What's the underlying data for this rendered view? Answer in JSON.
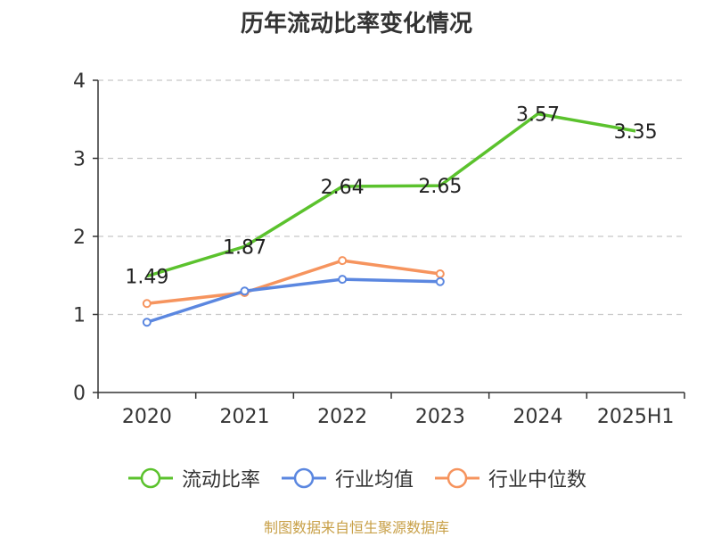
{
  "chart_data": {
    "type": "line",
    "title": "历年流动比率变化情况",
    "categories": [
      "2020",
      "2021",
      "2022",
      "2023",
      "2024",
      "2025H1"
    ],
    "ylim": [
      0,
      4
    ],
    "yticks": [
      "0",
      "1",
      "2",
      "3",
      "4"
    ],
    "grid": true,
    "legend_position": "bottom",
    "series": [
      {
        "name": "流动比率",
        "color": "#5bc22d",
        "show_labels": true,
        "values": [
          1.49,
          1.87,
          2.64,
          2.65,
          3.57,
          3.35
        ],
        "labels": [
          "1.49",
          "1.87",
          "2.64",
          "2.65",
          "3.57",
          "3.35"
        ]
      },
      {
        "name": "行业均值",
        "color": "#5b87e0",
        "show_labels": false,
        "values": [
          0.9,
          1.3,
          1.45,
          1.42,
          null,
          null
        ]
      },
      {
        "name": "行业中位数",
        "color": "#f6945e",
        "show_labels": false,
        "values": [
          1.14,
          1.28,
          1.69,
          1.52,
          null,
          null
        ]
      }
    ]
  },
  "source": "制图数据来自恒生聚源数据库"
}
